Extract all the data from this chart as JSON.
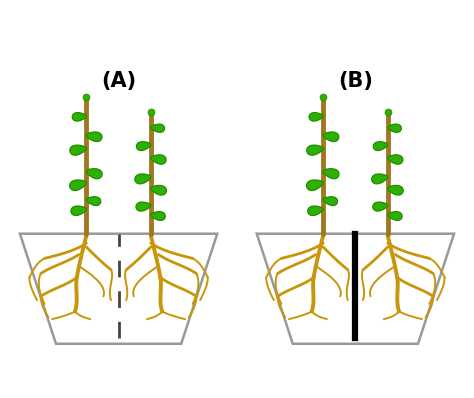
{
  "stem_color": "#A07820",
  "leaf_color": "#2DB000",
  "leaf_edge": "#1A8A00",
  "root_color": "#C8960A",
  "root_edge": "#A07820",
  "pot_edge_color": "#999999",
  "pot_fill": "#FFFFFF",
  "dashed_line_color": "#444444",
  "solid_line_color": "#000000",
  "background": "#FFFFFF",
  "label_A": "(A)",
  "label_B": "(B)",
  "label_fontsize": 15,
  "label_fontweight": "bold"
}
